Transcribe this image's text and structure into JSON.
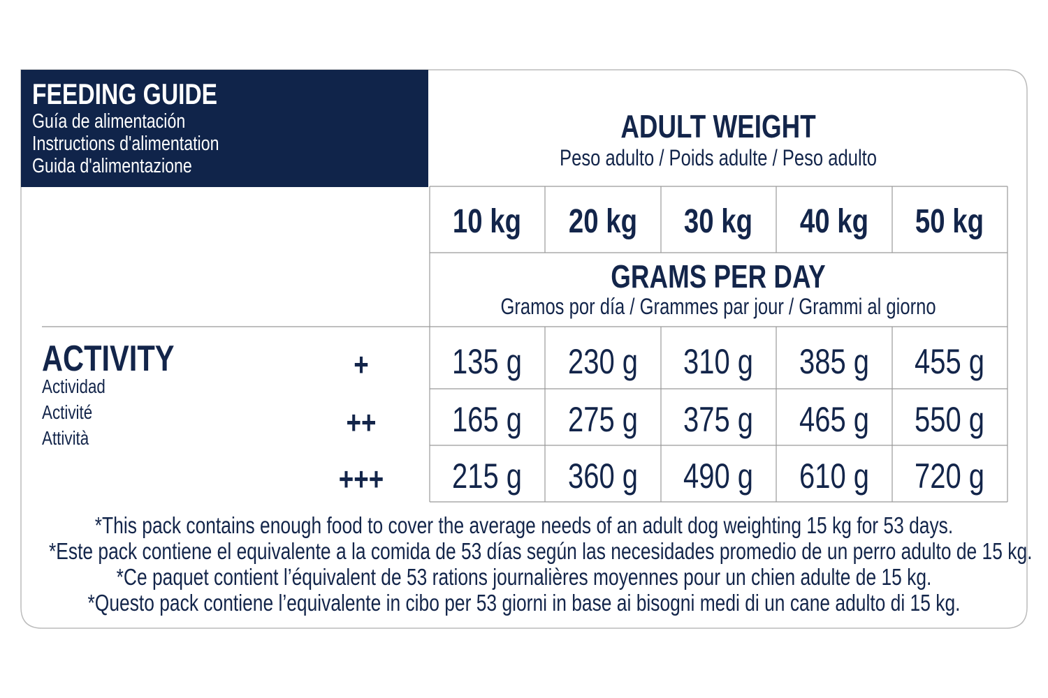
{
  "header": {
    "title": "FEEDING GUIDE",
    "subtitles": [
      "Guía de alimentación",
      "Instructions d'alimentation",
      "Guida d'alimentazione"
    ]
  },
  "weight_header": {
    "title": "ADULT WEIGHT",
    "subtitle": "Peso adulto / Poids adulte / Peso adulto"
  },
  "weights": [
    "10 kg",
    "20 kg",
    "30 kg",
    "40 kg",
    "50 kg"
  ],
  "amount_header": {
    "title": "GRAMS PER DAY",
    "subtitle": "Gramos por día / Grammes par jour / Grammi al giorno"
  },
  "activity": {
    "title": "ACTIVITY",
    "subtitles": [
      "Actividad",
      "Activité",
      "Attività"
    ]
  },
  "table": {
    "rows": [
      {
        "level": "+",
        "cells": [
          "135 g",
          "230 g",
          "310 g",
          "385 g",
          "455 g"
        ]
      },
      {
        "level": "++",
        "cells": [
          "165 g",
          "275 g",
          "375 g",
          "465 g",
          "550 g"
        ]
      },
      {
        "level": "+++",
        "cells": [
          "215 g",
          "360 g",
          "490 g",
          "610 g",
          "720 g"
        ]
      }
    ]
  },
  "footnotes": [
    "*This pack contains enough food to cover the average needs of an adult dog weighting 15 kg for 53 days.",
    "*Este pack contiene el equivalente a la comida de 53 días según las necesidades promedio de un perro adulto de 15 kg.",
    "*Ce paquet contient l’équivalent de 53 rations journalières moyennes pour un chien adulte de 15 kg.",
    "*Questo pack contiene l’equivalente in cibo per 53 giorni in base ai bisogni medi di un cane adulto di 15 kg."
  ]
}
